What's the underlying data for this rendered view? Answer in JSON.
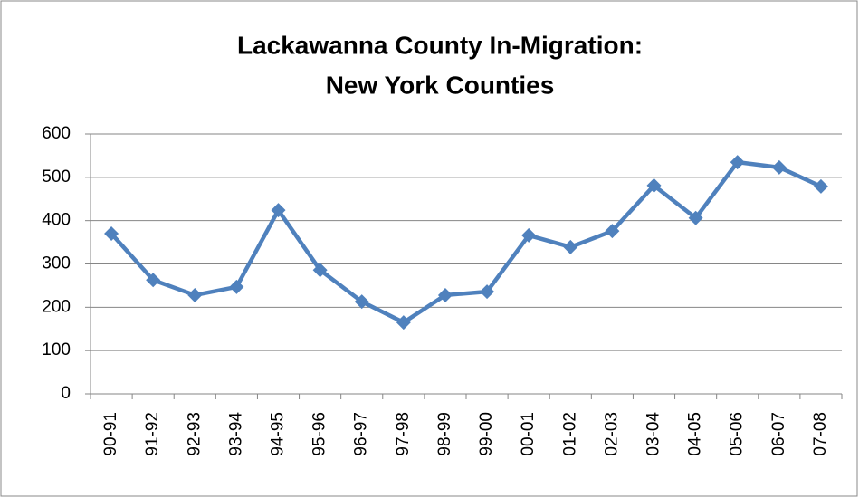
{
  "chart_data": {
    "type": "line",
    "title": [
      "Lackawanna County In-Migration:",
      "New York Counties"
    ],
    "categories": [
      "90-91",
      "91-92",
      "92-93",
      "93-94",
      "94-95",
      "95-96",
      "96-97",
      "97-98",
      "98-99",
      "99-00",
      "00-01",
      "01-02",
      "02-03",
      "03-04",
      "04-05",
      "05-06",
      "06-07",
      "07-08"
    ],
    "series": [
      {
        "name": "New York Counties",
        "color": "#4f81bd",
        "values": [
          370,
          263,
          228,
          247,
          424,
          286,
          213,
          165,
          228,
          236,
          366,
          339,
          376,
          481,
          406,
          535,
          523,
          479
        ]
      }
    ],
    "ylim": [
      0,
      600
    ],
    "yticks": [
      0,
      100,
      200,
      300,
      400,
      500,
      600
    ],
    "grid": true,
    "legend": false
  }
}
